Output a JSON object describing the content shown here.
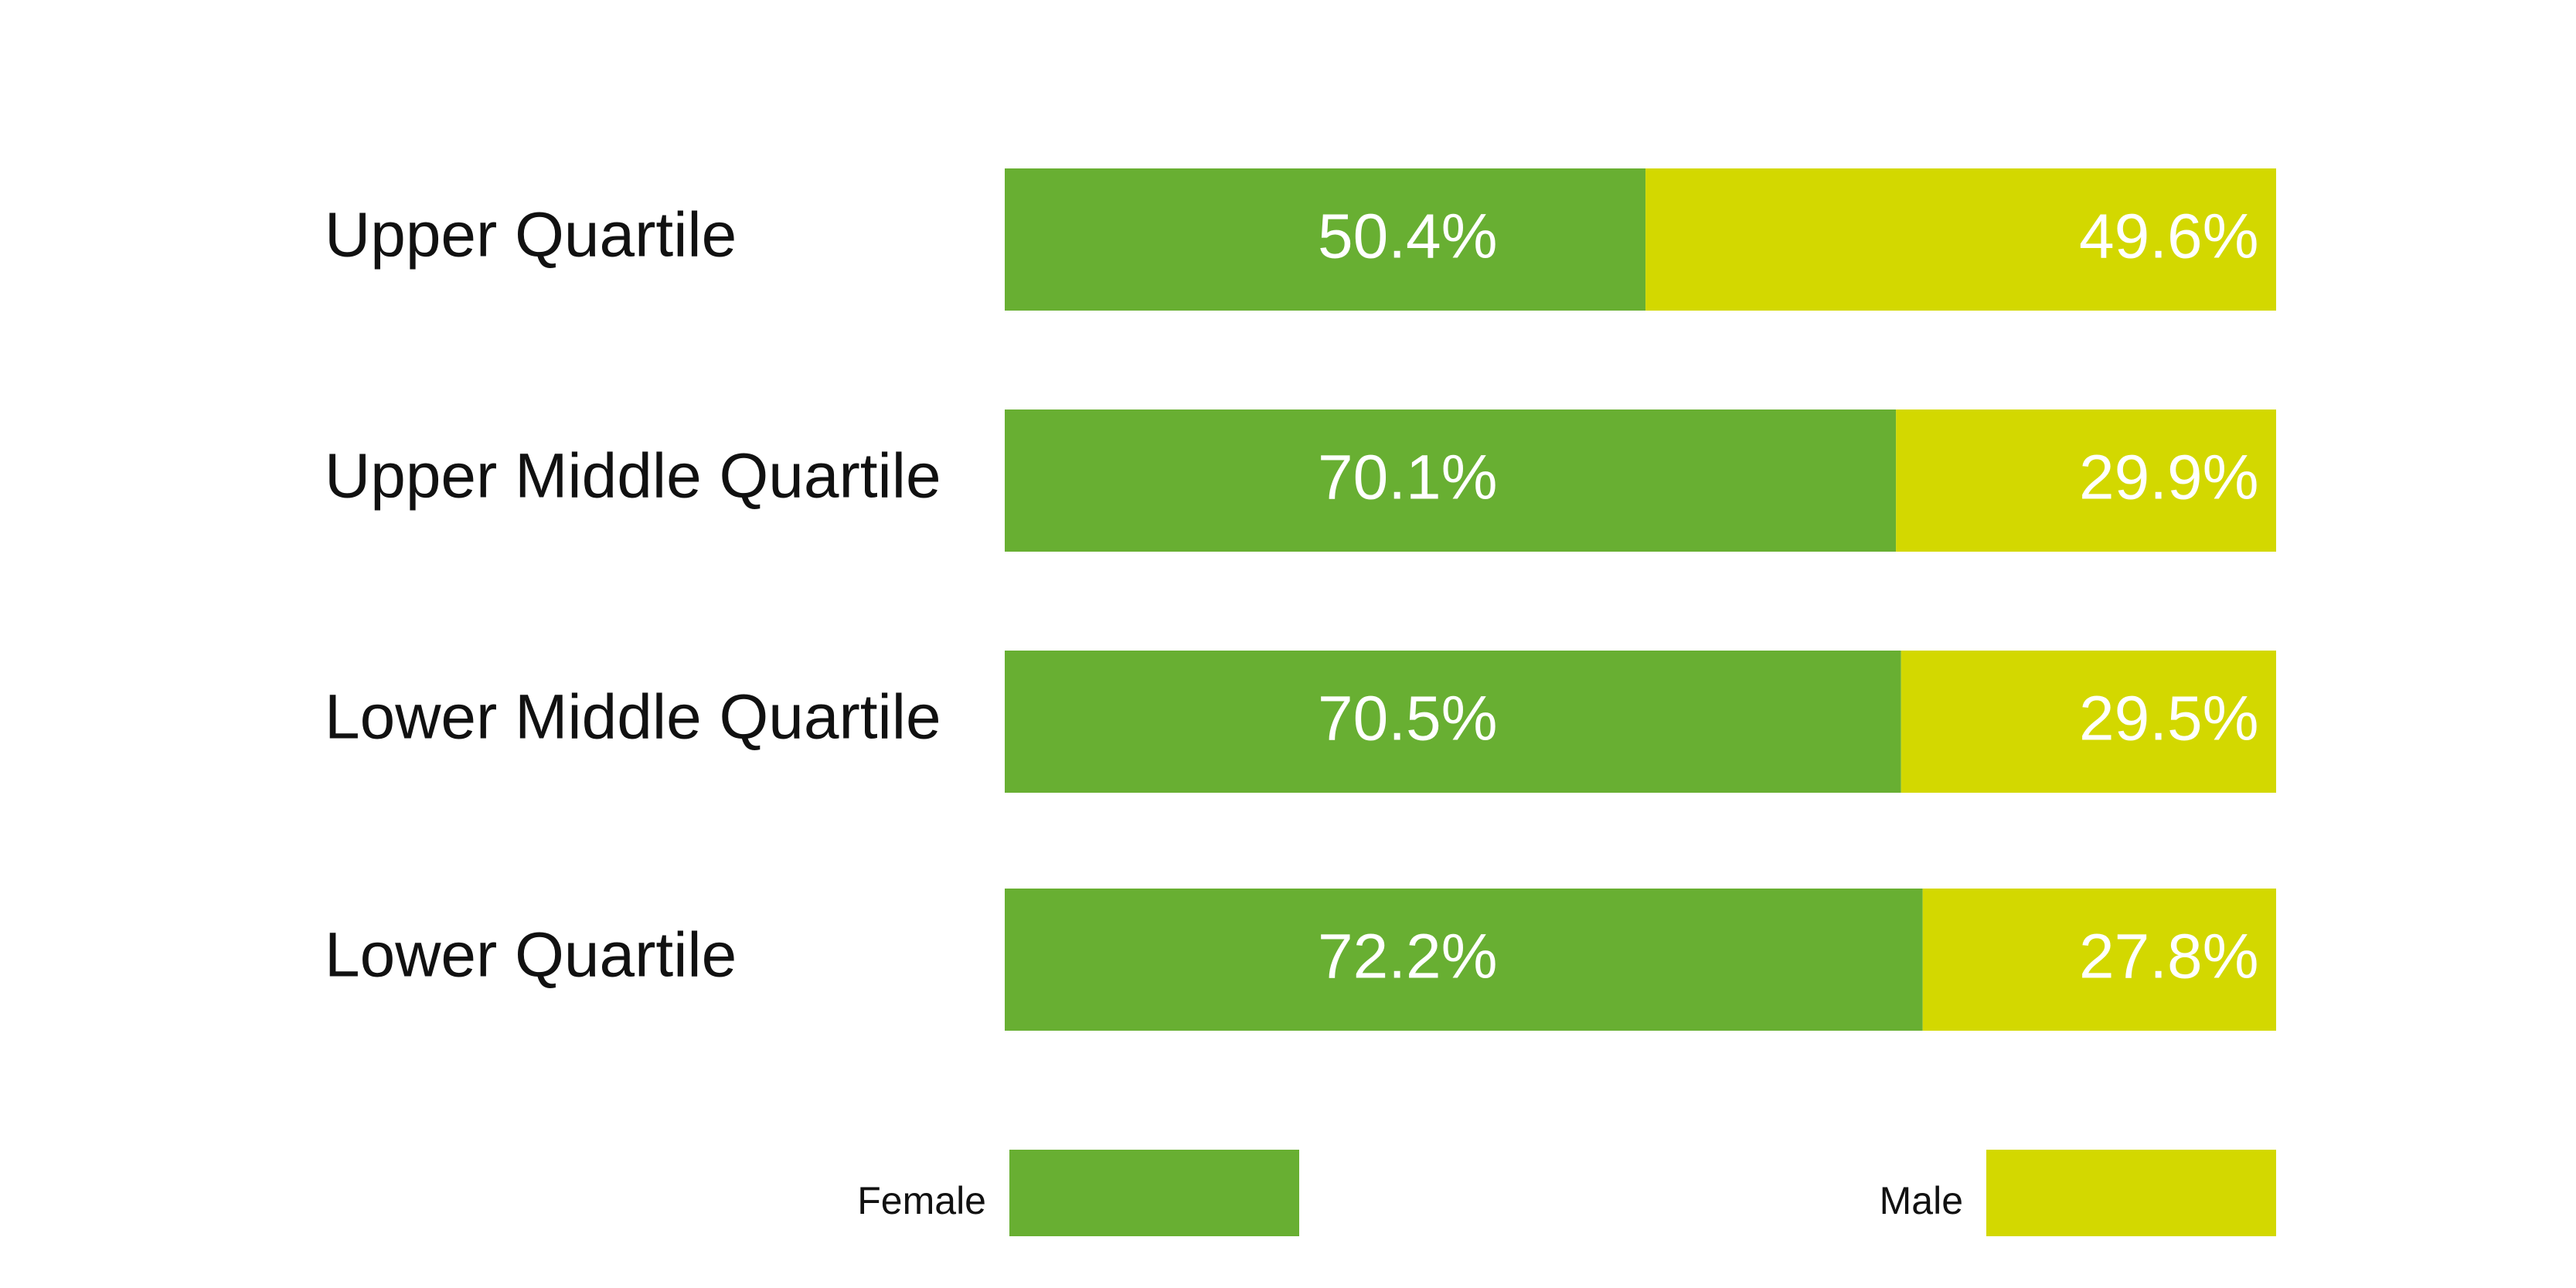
{
  "chart_data": {
    "type": "bar",
    "orientation": "horizontal",
    "stacked": true,
    "categories": [
      "Upper Quartile",
      "Upper Middle Quartile",
      "Lower Middle Quartile",
      "Lower Quartile"
    ],
    "series": [
      {
        "name": "Female",
        "color": "#68AF32",
        "values": [
          50.4,
          70.1,
          70.5,
          72.2
        ],
        "labels": [
          "50.4%",
          "70.1%",
          "70.5%",
          "72.2%"
        ]
      },
      {
        "name": "Male",
        "color": "#D3D800",
        "values": [
          49.6,
          29.9,
          29.5,
          27.8
        ],
        "labels": [
          "49.6%",
          "29.9%",
          "29.5%",
          "27.8%"
        ]
      }
    ],
    "xlim": [
      0,
      100
    ],
    "grid": false,
    "legend": "bottom"
  }
}
